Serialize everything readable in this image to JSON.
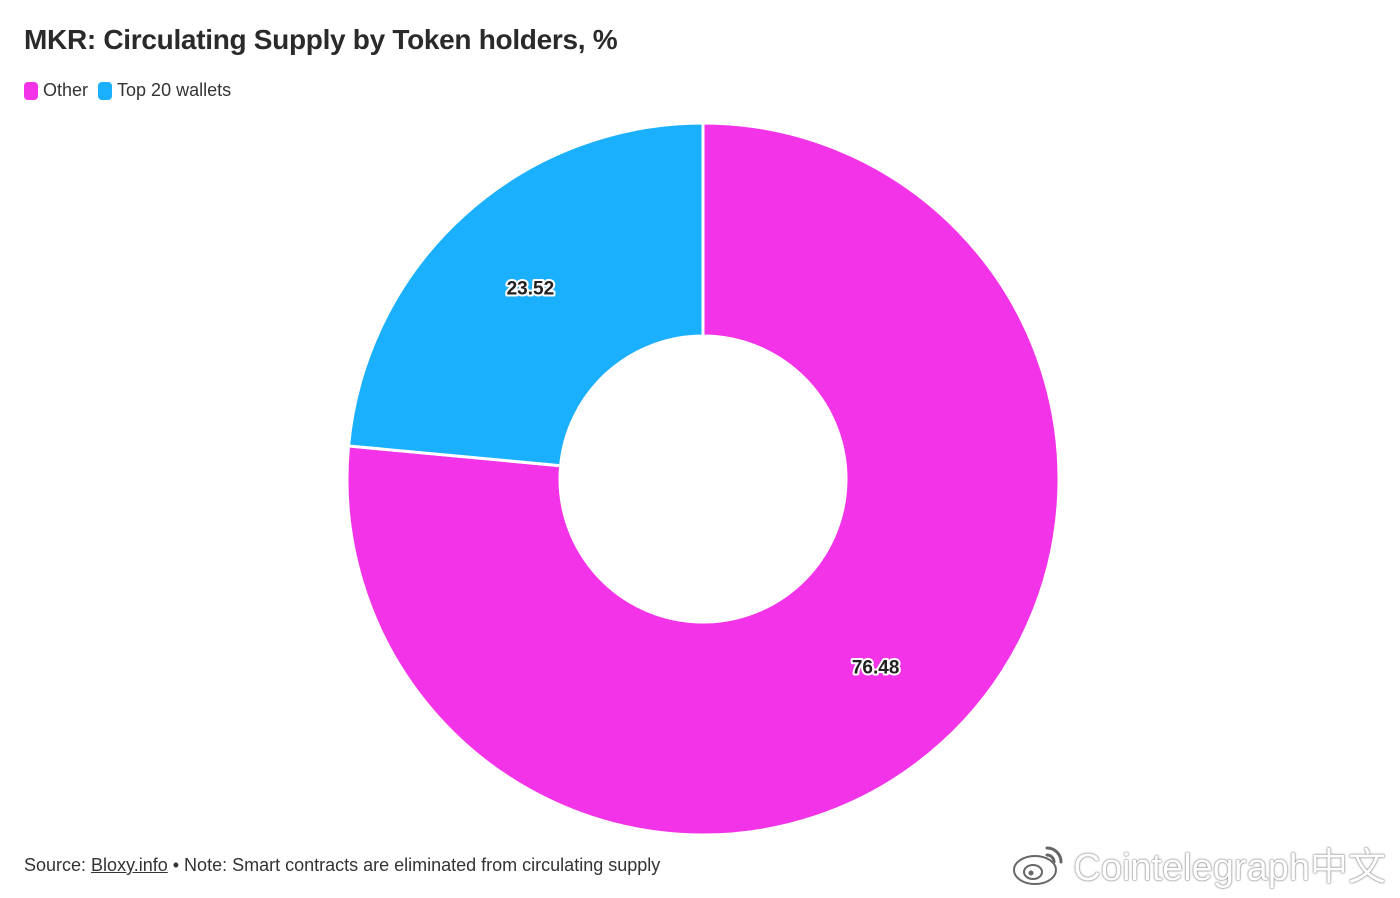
{
  "chart_data": {
    "type": "pie",
    "donut": true,
    "title": "MKR: Circulating Supply by Token holders, %",
    "categories": [
      "Other",
      "Top 20 wallets"
    ],
    "values": [
      76.48,
      23.52
    ],
    "colors": [
      "#f233e8",
      "#1bb0fd"
    ],
    "legend_position": "top-left"
  },
  "footer": {
    "source_prefix": "Source: ",
    "source_link": "Bloxy.info",
    "note": " • Note: Smart contracts are eliminated from circulating supply"
  },
  "watermark": {
    "text": "Cointelegraph中文",
    "icon": "weibo-icon"
  }
}
